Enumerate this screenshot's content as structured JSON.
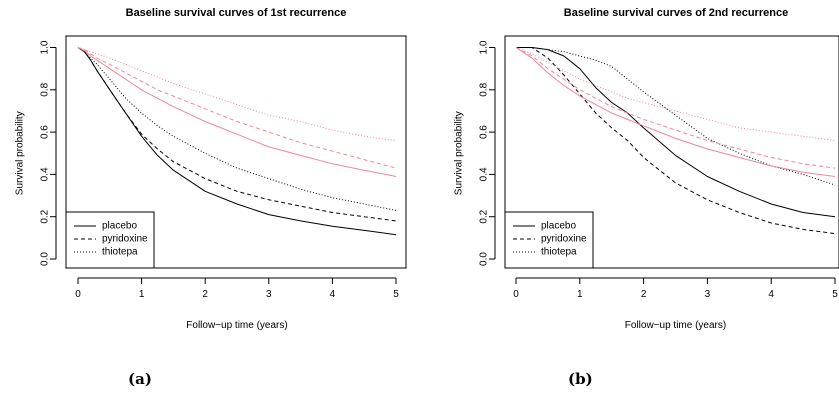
{
  "captions": [
    "(a)",
    "(b)"
  ],
  "chart_data": [
    {
      "type": "line",
      "title": "Baseline survival curves of 1st recurrence",
      "xlabel": "Follow−up time (years)",
      "ylabel": "Survival probability",
      "xlim": [
        0,
        5
      ],
      "ylim": [
        0,
        1
      ],
      "xticks": [
        0,
        1,
        2,
        3,
        4,
        5
      ],
      "yticks": [
        0.0,
        0.2,
        0.4,
        0.6,
        0.8,
        1.0
      ],
      "ytick_labels": [
        "0.0",
        "0.2",
        "0.4",
        "0.6",
        "0.8",
        "1.0"
      ],
      "legend_position": "bottom-left",
      "legend": [
        {
          "label": "placebo",
          "dash": "solid"
        },
        {
          "label": "pyridoxine",
          "dash": "dashed"
        },
        {
          "label": "thiotepa",
          "dash": "dotted"
        }
      ],
      "x": [
        0,
        0.1,
        0.2,
        0.3,
        0.5,
        0.75,
        1,
        1.25,
        1.5,
        2,
        2.5,
        3,
        3.5,
        4,
        4.5,
        5
      ],
      "series": [
        {
          "color": "#000000",
          "dash": "solid",
          "y": [
            1.0,
            0.98,
            0.94,
            0.89,
            0.8,
            0.69,
            0.58,
            0.49,
            0.42,
            0.32,
            0.26,
            0.21,
            0.18,
            0.155,
            0.135,
            0.115
          ]
        },
        {
          "color": "#000000",
          "dash": "dashed",
          "y": [
            1.0,
            0.98,
            0.94,
            0.89,
            0.8,
            0.69,
            0.59,
            0.52,
            0.46,
            0.38,
            0.32,
            0.28,
            0.25,
            0.22,
            0.2,
            0.18
          ]
        },
        {
          "color": "#000000",
          "dash": "dotted",
          "y": [
            1.0,
            0.98,
            0.95,
            0.92,
            0.85,
            0.76,
            0.69,
            0.63,
            0.58,
            0.5,
            0.43,
            0.38,
            0.33,
            0.29,
            0.26,
            0.23
          ]
        },
        {
          "color": "#ee8899",
          "dash": "solid",
          "y": [
            1.0,
            0.985,
            0.96,
            0.94,
            0.9,
            0.85,
            0.8,
            0.76,
            0.72,
            0.65,
            0.59,
            0.53,
            0.49,
            0.45,
            0.42,
            0.39
          ]
        },
        {
          "color": "#ee8899",
          "dash": "dashed",
          "y": [
            1.0,
            0.99,
            0.97,
            0.95,
            0.92,
            0.88,
            0.84,
            0.8,
            0.77,
            0.71,
            0.65,
            0.6,
            0.55,
            0.51,
            0.47,
            0.43
          ]
        },
        {
          "color": "#ee8899",
          "dash": "dotted",
          "y": [
            1.0,
            0.99,
            0.98,
            0.97,
            0.95,
            0.92,
            0.89,
            0.86,
            0.83,
            0.78,
            0.73,
            0.68,
            0.65,
            0.61,
            0.58,
            0.56
          ]
        }
      ]
    },
    {
      "type": "line",
      "title": "Baseline survival curves of 2nd recurrence",
      "xlabel": "Follow−up time (years)",
      "ylabel": "Survival probability",
      "xlim": [
        0,
        5
      ],
      "ylim": [
        0,
        1
      ],
      "xticks": [
        0,
        1,
        2,
        3,
        4,
        5
      ],
      "yticks": [
        0.0,
        0.2,
        0.4,
        0.6,
        0.8,
        1.0
      ],
      "ytick_labels": [
        "0.0",
        "0.2",
        "0.4",
        "0.6",
        "0.8",
        "1.0"
      ],
      "legend_position": "bottom-left",
      "legend": [
        {
          "label": "placebo",
          "dash": "solid"
        },
        {
          "label": "pyridoxine",
          "dash": "dashed"
        },
        {
          "label": "thiotepa",
          "dash": "dotted"
        }
      ],
      "x": [
        0,
        0.25,
        0.5,
        0.75,
        1,
        1.25,
        1.5,
        1.75,
        2,
        2.5,
        3,
        3.5,
        4,
        4.5,
        5
      ],
      "series": [
        {
          "color": "#000000",
          "dash": "solid",
          "y": [
            1.0,
            1.0,
            0.99,
            0.96,
            0.9,
            0.81,
            0.74,
            0.69,
            0.62,
            0.49,
            0.39,
            0.32,
            0.26,
            0.22,
            0.2
          ]
        },
        {
          "color": "#000000",
          "dash": "dashed",
          "y": [
            1.0,
            1.0,
            0.95,
            0.87,
            0.78,
            0.69,
            0.62,
            0.56,
            0.48,
            0.36,
            0.28,
            0.22,
            0.17,
            0.14,
            0.12
          ]
        },
        {
          "color": "#000000",
          "dash": "dotted",
          "y": [
            1.0,
            1.0,
            0.99,
            0.98,
            0.96,
            0.94,
            0.91,
            0.85,
            0.79,
            0.68,
            0.57,
            0.5,
            0.44,
            0.4,
            0.35
          ]
        },
        {
          "color": "#ee8899",
          "dash": "solid",
          "y": [
            1.0,
            0.95,
            0.88,
            0.82,
            0.77,
            0.73,
            0.69,
            0.66,
            0.63,
            0.57,
            0.52,
            0.48,
            0.44,
            0.41,
            0.39
          ]
        },
        {
          "color": "#ee8899",
          "dash": "dashed",
          "y": [
            1.0,
            0.96,
            0.9,
            0.85,
            0.8,
            0.76,
            0.72,
            0.69,
            0.66,
            0.61,
            0.56,
            0.52,
            0.48,
            0.45,
            0.43
          ]
        },
        {
          "color": "#ee8899",
          "dash": "dotted",
          "y": [
            1.0,
            0.97,
            0.93,
            0.89,
            0.85,
            0.82,
            0.79,
            0.76,
            0.74,
            0.7,
            0.66,
            0.62,
            0.6,
            0.58,
            0.56
          ]
        }
      ]
    }
  ]
}
